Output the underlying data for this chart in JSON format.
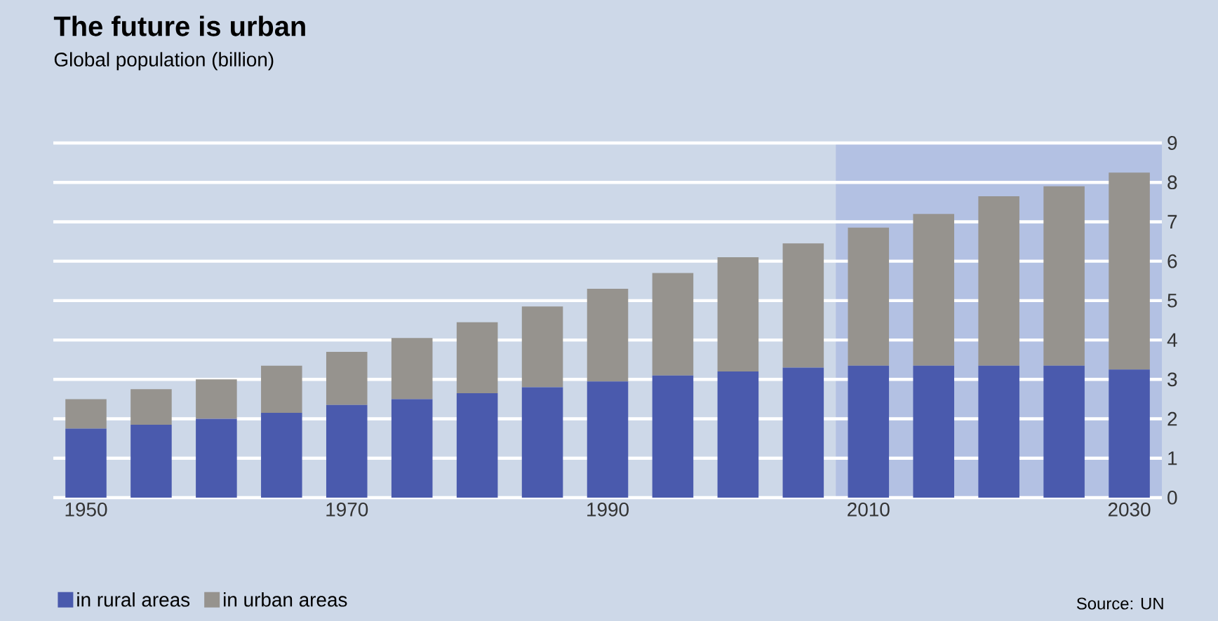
{
  "chart_data": {
    "type": "bar",
    "title": "The future is urban",
    "subtitle": "Global population (billion)",
    "categories": [
      "1950",
      null,
      null,
      null,
      "1970",
      null,
      null,
      null,
      "1990",
      null,
      null,
      null,
      "2010",
      null,
      null,
      null,
      "2030"
    ],
    "stacked": true,
    "series": [
      {
        "name": "in rural areas",
        "color": "#4a5aad",
        "values": [
          1.75,
          1.85,
          2.0,
          2.15,
          2.35,
          2.5,
          2.65,
          2.8,
          2.95,
          3.1,
          3.2,
          3.3,
          3.35,
          3.35,
          3.35,
          3.35,
          3.25
        ]
      },
      {
        "name": "in urban areas",
        "color": "#96938e",
        "values": [
          0.75,
          0.9,
          1.0,
          1.2,
          1.35,
          1.55,
          1.8,
          2.05,
          2.35,
          2.6,
          2.9,
          3.15,
          3.5,
          3.85,
          4.3,
          4.55,
          5.0
        ]
      }
    ],
    "ylim": [
      0,
      9
    ],
    "yticks": [
      0,
      1,
      2,
      3,
      4,
      5,
      6,
      7,
      8,
      9
    ],
    "grid": "y",
    "legend": "bottom left",
    "bands": [
      {
        "axis": "x",
        "from": "2010",
        "to": "2030",
        "color": "#b3c1e3"
      }
    ],
    "annotations": [
      "Source: UN"
    ]
  }
}
